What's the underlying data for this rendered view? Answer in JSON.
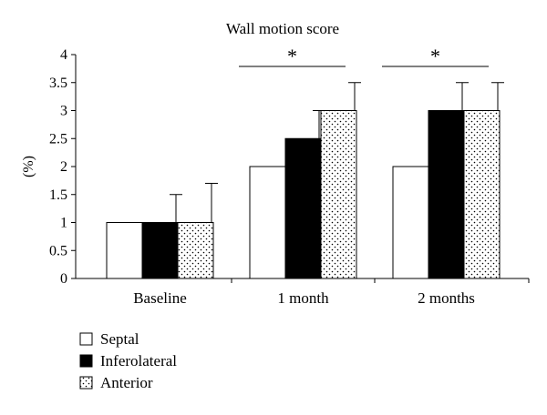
{
  "chart_data": {
    "type": "bar",
    "title": "Wall motion score",
    "xlabel": "",
    "ylabel": "(%)",
    "ylim": [
      0,
      4
    ],
    "yticks": [
      "0",
      "0.5",
      "1",
      "1.5",
      "2",
      "2.5",
      "3",
      "3.5",
      "4"
    ],
    "grid": false,
    "legend_position": "bottom-left",
    "categories": [
      "Baseline",
      "1 month",
      "2 months"
    ],
    "series": [
      {
        "name": "Septal",
        "values": [
          1,
          2,
          2
        ],
        "errors": [
          0,
          0,
          0
        ],
        "pattern": "white"
      },
      {
        "name": "Inferolateral",
        "values": [
          1,
          2.5,
          3
        ],
        "errors": [
          0.5,
          0.5,
          0.5
        ],
        "pattern": "black"
      },
      {
        "name": "Anterior",
        "values": [
          1,
          3,
          3
        ],
        "errors": [
          0.7,
          0.5,
          0.5
        ],
        "pattern": "dotted"
      }
    ],
    "significance": [
      {
        "category": "1 month",
        "label": "*"
      },
      {
        "category": "2 months",
        "label": "*"
      }
    ]
  }
}
